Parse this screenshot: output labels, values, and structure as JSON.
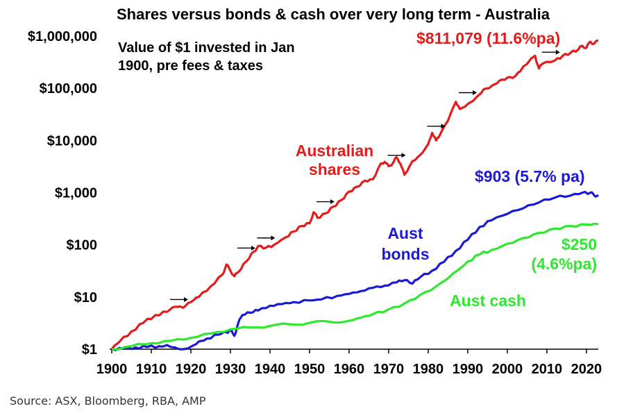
{
  "chart_data": {
    "type": "line",
    "title": "Shares versus bonds & cash over very long term - Australia",
    "note_lines": [
      "Value of $1 invested in Jan",
      "1900, pre fees & taxes"
    ],
    "y_scale": "log",
    "ylim": [
      1,
      1000000
    ],
    "xlim": [
      1900,
      2023
    ],
    "x_ticks": [
      1900,
      1910,
      1920,
      1930,
      1940,
      1950,
      1960,
      1970,
      1980,
      1990,
      2000,
      2010,
      2020
    ],
    "x_tick_labels": [
      "1900",
      "1910",
      "1920",
      "1930",
      "1940",
      "1950",
      "1960",
      "1970",
      "1980",
      "1990",
      "2000",
      "2010",
      "2020"
    ],
    "y_ticks": [
      1,
      10,
      100,
      1000,
      10000,
      100000,
      1000000
    ],
    "y_tick_labels": [
      "$1",
      "$10",
      "$100",
      "$1,000",
      "$10,000",
      "$100,000",
      "$1,000,000"
    ],
    "grid": false,
    "series": [
      {
        "name": "Australian shares",
        "color": "#e31b1b",
        "points": [
          [
            1900,
            1
          ],
          [
            1902,
            1.4
          ],
          [
            1905,
            2.2
          ],
          [
            1908,
            3.2
          ],
          [
            1911,
            4.5
          ],
          [
            1914,
            5.2
          ],
          [
            1916,
            6.5
          ],
          [
            1918,
            6.2
          ],
          [
            1920,
            8
          ],
          [
            1922,
            10
          ],
          [
            1925,
            16
          ],
          [
            1928,
            27
          ],
          [
            1929,
            42
          ],
          [
            1930,
            32
          ],
          [
            1931,
            25
          ],
          [
            1932,
            30
          ],
          [
            1934,
            48
          ],
          [
            1936,
            75
          ],
          [
            1937,
            95
          ],
          [
            1939,
            88
          ],
          [
            1941,
            100
          ],
          [
            1944,
            140
          ],
          [
            1946,
            180
          ],
          [
            1948,
            230
          ],
          [
            1950,
            260
          ],
          [
            1951,
            420
          ],
          [
            1952,
            330
          ],
          [
            1954,
            400
          ],
          [
            1956,
            540
          ],
          [
            1958,
            720
          ],
          [
            1960,
            1050
          ],
          [
            1962,
            1300
          ],
          [
            1964,
            1700
          ],
          [
            1966,
            1800
          ],
          [
            1968,
            3600
          ],
          [
            1969,
            3900
          ],
          [
            1970,
            3200
          ],
          [
            1971,
            3600
          ],
          [
            1972,
            4800
          ],
          [
            1973,
            3600
          ],
          [
            1974,
            2200
          ],
          [
            1976,
            4000
          ],
          [
            1978,
            5300
          ],
          [
            1980,
            8500
          ],
          [
            1981,
            14000
          ],
          [
            1982,
            10000
          ],
          [
            1983,
            13000
          ],
          [
            1985,
            24000
          ],
          [
            1987,
            55000
          ],
          [
            1988,
            40000
          ],
          [
            1990,
            50000
          ],
          [
            1992,
            65000
          ],
          [
            1994,
            95000
          ],
          [
            1996,
            110000
          ],
          [
            1998,
            140000
          ],
          [
            2000,
            160000
          ],
          [
            2002,
            170000
          ],
          [
            2004,
            260000
          ],
          [
            2007,
            420000
          ],
          [
            2008,
            240000
          ],
          [
            2009,
            300000
          ],
          [
            2012,
            340000
          ],
          [
            2014,
            420000
          ],
          [
            2016,
            480000
          ],
          [
            2018,
            560000
          ],
          [
            2019,
            650000
          ],
          [
            2020,
            600000
          ],
          [
            2021,
            780000
          ],
          [
            2022,
            720000
          ],
          [
            2023,
            811079
          ]
        ]
      },
      {
        "name": "Aust bonds",
        "color": "#1a1ad6",
        "points": [
          [
            1900,
            1
          ],
          [
            1903,
            1.02
          ],
          [
            1906,
            1.08
          ],
          [
            1909,
            1.1
          ],
          [
            1912,
            1.14
          ],
          [
            1914,
            1.2
          ],
          [
            1916,
            1.08
          ],
          [
            1918,
            1.0
          ],
          [
            1920,
            1.12
          ],
          [
            1922,
            1.4
          ],
          [
            1924,
            1.6
          ],
          [
            1927,
            1.9
          ],
          [
            1929,
            2.1
          ],
          [
            1930,
            2.3
          ],
          [
            1931,
            1.8
          ],
          [
            1932,
            3.2
          ],
          [
            1933,
            4.5
          ],
          [
            1935,
            5.0
          ],
          [
            1937,
            5.5
          ],
          [
            1940,
            6.8
          ],
          [
            1943,
            7.3
          ],
          [
            1946,
            8.0
          ],
          [
            1950,
            8.6
          ],
          [
            1953,
            9.0
          ],
          [
            1957,
            10.5
          ],
          [
            1960,
            11.5
          ],
          [
            1963,
            13
          ],
          [
            1966,
            15
          ],
          [
            1969,
            16.5
          ],
          [
            1972,
            19
          ],
          [
            1974,
            21
          ],
          [
            1976,
            18
          ],
          [
            1978,
            24
          ],
          [
            1981,
            32
          ],
          [
            1984,
            47
          ],
          [
            1987,
            77
          ],
          [
            1990,
            125
          ],
          [
            1993,
            220
          ],
          [
            1996,
            295
          ],
          [
            2000,
            390
          ],
          [
            2004,
            500
          ],
          [
            2008,
            650
          ],
          [
            2012,
            800
          ],
          [
            2016,
            880
          ],
          [
            2019,
            1000
          ],
          [
            2021,
            1000
          ],
          [
            2022,
            880
          ],
          [
            2023,
            903
          ]
        ]
      },
      {
        "name": "Aust cash",
        "color": "#2ee82e",
        "points": [
          [
            1900,
            1
          ],
          [
            1905,
            1.15
          ],
          [
            1910,
            1.3
          ],
          [
            1915,
            1.45
          ],
          [
            1920,
            1.65
          ],
          [
            1925,
            2.0
          ],
          [
            1930,
            2.4
          ],
          [
            1935,
            2.6
          ],
          [
            1940,
            2.8
          ],
          [
            1945,
            3.0
          ],
          [
            1950,
            3.2
          ],
          [
            1955,
            3.35
          ],
          [
            1960,
            3.5
          ],
          [
            1963,
            4
          ],
          [
            1966,
            4.7
          ],
          [
            1970,
            5.8
          ],
          [
            1974,
            7.5
          ],
          [
            1978,
            11
          ],
          [
            1982,
            16
          ],
          [
            1986,
            27
          ],
          [
            1990,
            48
          ],
          [
            1993,
            65
          ],
          [
            1996,
            80
          ],
          [
            2000,
            105
          ],
          [
            2004,
            135
          ],
          [
            2008,
            170
          ],
          [
            2012,
            205
          ],
          [
            2016,
            230
          ],
          [
            2020,
            245
          ],
          [
            2023,
            250
          ]
        ]
      }
    ],
    "annotations": {
      "shares_label": [
        "Australian",
        "shares"
      ],
      "shares_end": "$811,079 (11.6%pa)",
      "bonds_label": [
        "Aust",
        "bonds"
      ],
      "bonds_end": "$903 (5.7% pa)",
      "cash_label": "Aust cash",
      "cash_end": [
        "$250",
        "(4.6%pa)"
      ]
    },
    "arrow_years": [
      1918,
      1935,
      1940,
      1955,
      1973,
      1983,
      1991,
      2012
    ]
  },
  "source": "Source: ASX, Bloomberg, RBA, AMP"
}
